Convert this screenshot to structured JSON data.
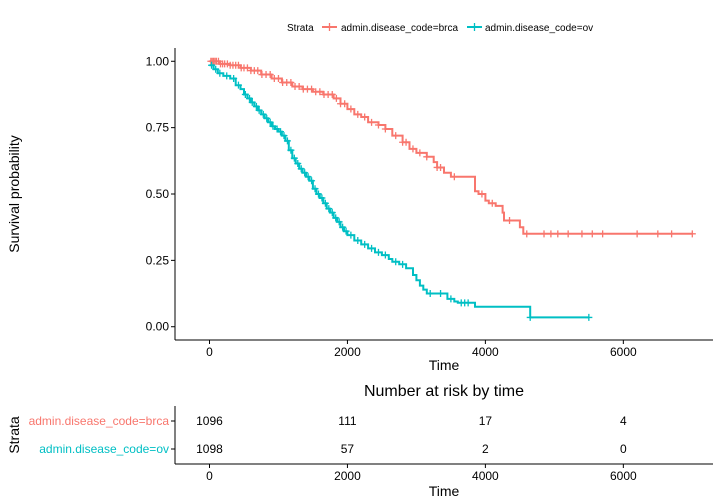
{
  "legend": {
    "title": "Strata",
    "entries": [
      {
        "label": "admin.disease_code=brca",
        "color": "#F8766D"
      },
      {
        "label": "admin.disease_code=ov",
        "color": "#00BFC4"
      }
    ]
  },
  "chart_data": [
    {
      "type": "line",
      "subtype": "kaplan-meier step",
      "xlabel": "Time",
      "ylabel": "Survival probability",
      "xlim": [
        -500,
        7300
      ],
      "ylim": [
        -0.05,
        1.05
      ],
      "xticks": [
        "0",
        "2000",
        "4000",
        "6000"
      ],
      "xtick_values": [
        0,
        2000,
        4000,
        6000
      ],
      "yticks": [
        "0.00",
        "0.25",
        "0.50",
        "0.75",
        "1.00"
      ],
      "ytick_values": [
        0,
        0.25,
        0.5,
        0.75,
        1.0
      ],
      "grid": false,
      "legend_position": "top",
      "series": [
        {
          "name": "admin.disease_code=brca",
          "color": "#F8766D",
          "steps": [
            [
              0,
              1.0
            ],
            [
              150,
              0.99
            ],
            [
              300,
              0.985
            ],
            [
              450,
              0.975
            ],
            [
              600,
              0.965
            ],
            [
              750,
              0.95
            ],
            [
              900,
              0.935
            ],
            [
              1050,
              0.92
            ],
            [
              1200,
              0.905
            ],
            [
              1350,
              0.895
            ],
            [
              1500,
              0.885
            ],
            [
              1650,
              0.875
            ],
            [
              1800,
              0.86
            ],
            [
              1900,
              0.84
            ],
            [
              2000,
              0.82
            ],
            [
              2100,
              0.8
            ],
            [
              2200,
              0.79
            ],
            [
              2300,
              0.77
            ],
            [
              2450,
              0.76
            ],
            [
              2550,
              0.745
            ],
            [
              2650,
              0.72
            ],
            [
              2800,
              0.695
            ],
            [
              2900,
              0.67
            ],
            [
              3000,
              0.655
            ],
            [
              3150,
              0.64
            ],
            [
              3250,
              0.62
            ],
            [
              3300,
              0.6
            ],
            [
              3400,
              0.58
            ],
            [
              3500,
              0.565
            ],
            [
              3650,
              0.565
            ],
            [
              3850,
              0.51
            ],
            [
              3900,
              0.5
            ],
            [
              4000,
              0.475
            ],
            [
              4050,
              0.465
            ],
            [
              4150,
              0.455
            ],
            [
              4250,
              0.43
            ],
            [
              4270,
              0.4
            ],
            [
              4300,
              0.4
            ],
            [
              4500,
              0.375
            ],
            [
              4550,
              0.35
            ],
            [
              7000,
              0.35
            ]
          ],
          "censor_times": [
            20,
            40,
            60,
            80,
            100,
            130,
            160,
            190,
            220,
            260,
            300,
            340,
            380,
            420,
            460,
            500,
            550,
            600,
            650,
            700,
            760,
            820,
            880,
            940,
            1000,
            1060,
            1120,
            1180,
            1240,
            1300,
            1360,
            1420,
            1480,
            1540,
            1600,
            1660,
            1720,
            1780,
            1840,
            1900,
            1960,
            2050,
            2150,
            2250,
            2350,
            2450,
            2550,
            2700,
            2800,
            2850,
            2950,
            3050,
            3150,
            3300,
            3350,
            3550,
            3950,
            4100,
            4350,
            4600,
            4850,
            4950,
            5050,
            5200,
            5400,
            5550,
            5700,
            6200,
            6500,
            6700,
            7000
          ]
        },
        {
          "name": "admin.disease_code=ov",
          "color": "#00BFC4",
          "steps": [
            [
              0,
              0.985
            ],
            [
              60,
              0.97
            ],
            [
              120,
              0.955
            ],
            [
              200,
              0.945
            ],
            [
              300,
              0.935
            ],
            [
              380,
              0.91
            ],
            [
              450,
              0.895
            ],
            [
              500,
              0.875
            ],
            [
              550,
              0.86
            ],
            [
              600,
              0.845
            ],
            [
              650,
              0.83
            ],
            [
              700,
              0.815
            ],
            [
              750,
              0.8
            ],
            [
              800,
              0.785
            ],
            [
              850,
              0.77
            ],
            [
              900,
              0.755
            ],
            [
              950,
              0.745
            ],
            [
              1000,
              0.735
            ],
            [
              1050,
              0.72
            ],
            [
              1100,
              0.7
            ],
            [
              1150,
              0.665
            ],
            [
              1200,
              0.635
            ],
            [
              1250,
              0.615
            ],
            [
              1300,
              0.595
            ],
            [
              1350,
              0.58
            ],
            [
              1400,
              0.565
            ],
            [
              1450,
              0.55
            ],
            [
              1500,
              0.52
            ],
            [
              1550,
              0.5
            ],
            [
              1600,
              0.485
            ],
            [
              1650,
              0.465
            ],
            [
              1700,
              0.445
            ],
            [
              1750,
              0.43
            ],
            [
              1800,
              0.41
            ],
            [
              1850,
              0.395
            ],
            [
              1900,
              0.375
            ],
            [
              1950,
              0.36
            ],
            [
              2000,
              0.345
            ],
            [
              2100,
              0.325
            ],
            [
              2200,
              0.31
            ],
            [
              2300,
              0.295
            ],
            [
              2400,
              0.28
            ],
            [
              2500,
              0.27
            ],
            [
              2600,
              0.255
            ],
            [
              2650,
              0.245
            ],
            [
              2750,
              0.235
            ],
            [
              2850,
              0.22
            ],
            [
              2950,
              0.195
            ],
            [
              3000,
              0.175
            ],
            [
              3050,
              0.155
            ],
            [
              3100,
              0.14
            ],
            [
              3150,
              0.125
            ],
            [
              3400,
              0.125
            ],
            [
              3450,
              0.105
            ],
            [
              3550,
              0.095
            ],
            [
              3600,
              0.09
            ],
            [
              3800,
              0.09
            ],
            [
              3850,
              0.075
            ],
            [
              4600,
              0.075
            ],
            [
              4650,
              0.035
            ],
            [
              5500,
              0.035
            ]
          ],
          "censor_times": [
            30,
            90,
            150,
            250,
            350,
            420,
            520,
            580,
            620,
            680,
            720,
            780,
            830,
            880,
            920,
            980,
            1030,
            1080,
            1130,
            1180,
            1230,
            1280,
            1330,
            1380,
            1430,
            1480,
            1530,
            1580,
            1630,
            1680,
            1730,
            1780,
            1830,
            1880,
            1930,
            1980,
            2050,
            2150,
            2250,
            2350,
            2450,
            2550,
            2700,
            2800,
            3200,
            3350,
            3500,
            3650,
            3700,
            3750,
            4650,
            5500
          ]
        }
      ]
    },
    {
      "type": "table",
      "title": "Number at risk by time",
      "ylabel": "Strata",
      "xlabel": "Time",
      "xticks": [
        "0",
        "2000",
        "4000",
        "6000"
      ],
      "xtick_values": [
        0,
        2000,
        4000,
        6000
      ],
      "times": [
        0,
        2000,
        4000,
        6000
      ],
      "rows": [
        {
          "name": "admin.disease_code=brca",
          "color": "#F8766D",
          "values": [
            "1096",
            "111",
            "17",
            "4"
          ]
        },
        {
          "name": "admin.disease_code=ov",
          "color": "#00BFC4",
          "values": [
            "1098",
            "57",
            "2",
            "0"
          ]
        }
      ]
    }
  ]
}
